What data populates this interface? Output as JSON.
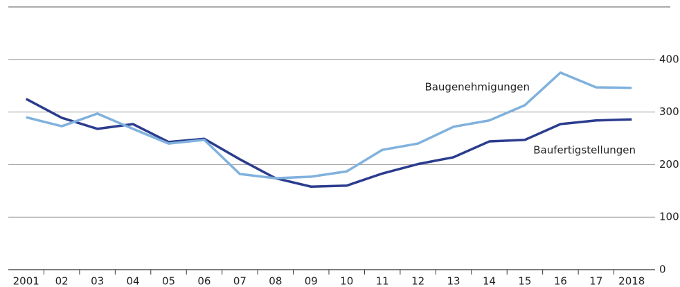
{
  "chart_data": {
    "type": "line",
    "categories": [
      "2001",
      "02",
      "03",
      "04",
      "05",
      "06",
      "07",
      "08",
      "09",
      "10",
      "11",
      "12",
      "13",
      "14",
      "15",
      "16",
      "17",
      "2018"
    ],
    "series": [
      {
        "name": "Baufertigstellungen",
        "color": "#2b3c8e",
        "values": [
          325,
          289,
          268,
          277,
          243,
          249,
          210,
          174,
          158,
          160,
          183,
          201,
          214,
          244,
          247,
          277,
          284,
          286
        ]
      },
      {
        "name": "Baugenehmigungen",
        "color": "#80b1dd",
        "values": [
          290,
          273,
          297,
          268,
          240,
          247,
          182,
          174,
          177,
          187,
          228,
          240,
          272,
          284,
          313,
          375,
          347,
          346
        ]
      }
    ],
    "ylim": [
      0,
      500
    ],
    "yticks": [
      0,
      100,
      200,
      300,
      400
    ],
    "grid": true,
    "y_axis_side": "right"
  }
}
